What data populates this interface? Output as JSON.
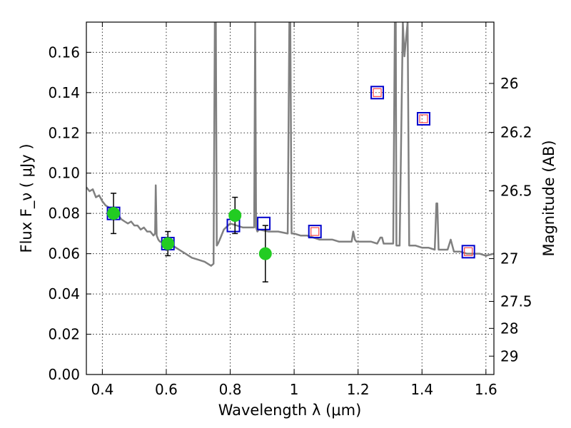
{
  "chart_data": {
    "type": "scatter",
    "title": "",
    "xlabel": "Wavelength  λ (μm)",
    "ylabel": "Flux  F_ν  ( μJy )",
    "y2label": "Magnitude (AB)",
    "xlim": [
      0.35,
      1.625
    ],
    "ylim": [
      0.0,
      0.175
    ],
    "grid": true,
    "x_ticks": [
      0.4,
      0.6,
      0.8,
      1.0,
      1.2,
      1.4,
      1.6
    ],
    "x_tick_labels": [
      "0.4",
      "0.6",
      "0.8",
      "1",
      "1.2",
      "1.4",
      "1.6"
    ],
    "y_ticks": [
      0.0,
      0.02,
      0.04,
      0.06,
      0.08,
      0.1,
      0.12,
      0.14,
      0.16
    ],
    "y_tick_labels": [
      "0.00",
      "0.02",
      "0.04",
      "0.06",
      "0.08",
      "0.10",
      "0.12",
      "0.14",
      "0.16"
    ],
    "y2_tick_labels": [
      "26",
      "26.2",
      "26.5",
      "27",
      "27.5",
      "28",
      "29"
    ],
    "colors": {
      "model": "#808080",
      "observed": "#22cc22",
      "model_box": "#0000cc",
      "model_inner": "#ff4444",
      "errorbar": "#000000"
    },
    "series": [
      {
        "kind": "model_spectrum",
        "x": [
          0.35,
          0.36,
          0.37,
          0.38,
          0.39,
          0.4,
          0.41,
          0.42,
          0.43,
          0.44,
          0.45,
          0.46,
          0.47,
          0.48,
          0.49,
          0.5,
          0.51,
          0.52,
          0.53,
          0.54,
          0.55,
          0.56,
          0.565,
          0.567,
          0.57,
          0.575,
          0.58,
          0.6,
          0.62,
          0.64,
          0.66,
          0.68,
          0.7,
          0.72,
          0.74,
          0.748,
          0.752,
          0.755,
          0.758,
          0.762,
          0.77,
          0.78,
          0.8,
          0.82,
          0.84,
          0.86,
          0.875,
          0.878,
          0.881,
          0.885,
          0.89,
          0.92,
          0.95,
          0.98,
          0.985,
          0.988,
          0.992,
          1.0,
          1.02,
          1.04,
          1.06,
          1.08,
          1.1,
          1.12,
          1.14,
          1.16,
          1.18,
          1.185,
          1.19,
          1.195,
          1.2,
          1.24,
          1.26,
          1.27,
          1.275,
          1.28,
          1.29,
          1.3,
          1.31,
          1.315,
          1.318,
          1.32,
          1.33,
          1.34,
          1.345,
          1.355,
          1.36,
          1.37,
          1.38,
          1.4,
          1.42,
          1.44,
          1.445,
          1.448,
          1.452,
          1.46,
          1.48,
          1.49,
          1.5,
          1.52,
          1.54,
          1.56,
          1.58,
          1.6,
          1.625
        ],
        "y": [
          0.093,
          0.091,
          0.092,
          0.088,
          0.089,
          0.086,
          0.084,
          0.083,
          0.081,
          0.08,
          0.079,
          0.077,
          0.076,
          0.075,
          0.076,
          0.074,
          0.074,
          0.072,
          0.073,
          0.071,
          0.071,
          0.069,
          0.07,
          0.094,
          0.069,
          0.067,
          0.066,
          0.065,
          0.064,
          0.062,
          0.06,
          0.058,
          0.057,
          0.056,
          0.054,
          0.055,
          0.175,
          0.175,
          0.064,
          0.065,
          0.068,
          0.072,
          0.075,
          0.074,
          0.073,
          0.073,
          0.073,
          0.175,
          0.073,
          0.071,
          0.072,
          0.071,
          0.071,
          0.07,
          0.175,
          0.175,
          0.07,
          0.07,
          0.069,
          0.069,
          0.068,
          0.067,
          0.067,
          0.067,
          0.066,
          0.066,
          0.066,
          0.071,
          0.067,
          0.066,
          0.066,
          0.066,
          0.065,
          0.068,
          0.068,
          0.065,
          0.065,
          0.065,
          0.065,
          0.175,
          0.175,
          0.064,
          0.064,
          0.175,
          0.158,
          0.175,
          0.064,
          0.064,
          0.064,
          0.063,
          0.063,
          0.062,
          0.085,
          0.085,
          0.062,
          0.062,
          0.062,
          0.067,
          0.061,
          0.061,
          0.06,
          0.06,
          0.06,
          0.059,
          0.06
        ]
      },
      {
        "kind": "observed",
        "x": [
          0.435,
          0.605,
          0.815,
          0.91
        ],
        "y": [
          0.08,
          0.065,
          0.079,
          0.06
        ],
        "yerr": [
          0.01,
          0.006,
          0.009,
          0.014
        ]
      },
      {
        "kind": "model_photometry",
        "x": [
          0.435,
          0.605,
          0.81,
          0.905
        ],
        "y": [
          0.08,
          0.065,
          0.074,
          0.075
        ]
      },
      {
        "kind": "model_photometry_undetected",
        "x": [
          1.065,
          1.26,
          1.405,
          1.545
        ],
        "y": [
          0.071,
          0.14,
          0.127,
          0.061
        ]
      }
    ]
  }
}
